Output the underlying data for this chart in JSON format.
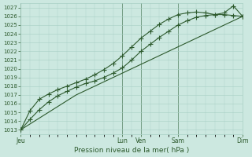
{
  "title": "Pression niveau de la mer( hPa )",
  "bg_color": "#cce8e0",
  "grid_color": "#a8cfc4",
  "line_color": "#2d5a2d",
  "ylim": [
    1012.5,
    1027.5
  ],
  "yticks": [
    1013,
    1014,
    1015,
    1016,
    1017,
    1018,
    1019,
    1020,
    1021,
    1022,
    1023,
    1024,
    1025,
    1026,
    1027
  ],
  "day_labels": [
    "Jeu",
    "Lun",
    "Ven",
    "Sam",
    "Dim"
  ],
  "day_positions": [
    0,
    5.5,
    6.5,
    8.5,
    12
  ],
  "xlim": [
    0,
    12
  ],
  "vline_positions": [
    0,
    5.5,
    6.5,
    8.5,
    12
  ],
  "line1_x": [
    0,
    0.5,
    1.0,
    1.5,
    2.0,
    2.5,
    3.0,
    3.5,
    4.0,
    4.5,
    5.0,
    5.5,
    6.0,
    6.5,
    7.0,
    7.5,
    8.0,
    8.5,
    9.0,
    9.5,
    10.0,
    10.5,
    11.0,
    11.5,
    12.0
  ],
  "line1_y": [
    1013.0,
    1014.2,
    1015.3,
    1016.2,
    1016.9,
    1017.4,
    1017.9,
    1018.3,
    1018.6,
    1019.0,
    1019.5,
    1020.1,
    1021.0,
    1022.0,
    1022.8,
    1023.6,
    1024.3,
    1025.0,
    1025.5,
    1025.9,
    1026.1,
    1026.2,
    1026.2,
    1026.1,
    1026.0
  ],
  "line2_x": [
    0,
    0.5,
    1.0,
    1.5,
    2.0,
    2.5,
    3.0,
    3.5,
    4.0,
    4.5,
    5.0,
    5.5,
    6.0,
    6.5,
    7.0,
    7.5,
    8.0,
    8.5,
    9.0,
    9.5,
    10.0,
    10.5,
    11.0,
    11.5,
    12.0
  ],
  "line2_y": [
    1013.0,
    1015.2,
    1016.5,
    1017.1,
    1017.6,
    1018.0,
    1018.4,
    1018.8,
    1019.3,
    1019.9,
    1020.6,
    1021.5,
    1022.5,
    1023.5,
    1024.3,
    1025.1,
    1025.7,
    1026.2,
    1026.4,
    1026.5,
    1026.4,
    1026.2,
    1026.4,
    1027.2,
    1026.0
  ],
  "line3_x": [
    0,
    1.5,
    3.0,
    4.5,
    6.0,
    7.5,
    9.0,
    10.5,
    12.0
  ],
  "line3_y": [
    1013.0,
    1015.0,
    1017.0,
    1018.5,
    1020.0,
    1021.5,
    1023.0,
    1024.5,
    1026.0
  ]
}
